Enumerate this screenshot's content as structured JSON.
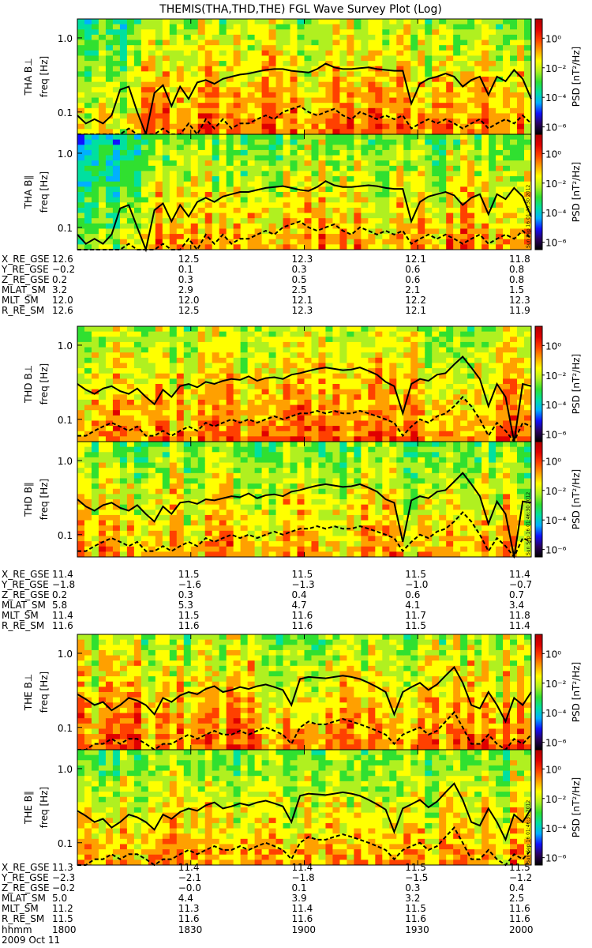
{
  "title": "THEMIS(THA,THD,THE) FGL Wave Survey Plot (Log)",
  "date_label": "2009 Oct 11",
  "stamp": "Sun Sep 16 01:46:30 2012",
  "colorbar": {
    "label": "PSD [nT²/Hz]",
    "ticks": [
      "10⁰",
      "10⁻²",
      "10⁻⁴",
      "10⁻⁶"
    ],
    "tick_values": [
      0,
      -2,
      -4,
      -6
    ],
    "range_log10": [
      -6.5,
      1.3
    ],
    "colors": [
      "#000000",
      "#2a0060",
      "#1010ff",
      "#00b0ff",
      "#00e0a0",
      "#30e030",
      "#b0f020",
      "#ffff00",
      "#ffa000",
      "#ff4000",
      "#e00000",
      "#b00000"
    ]
  },
  "yaxis": {
    "label": "freq [Hz]",
    "ticks": [
      "1.0",
      "0.1"
    ],
    "tick_values": [
      1.0,
      0.1
    ],
    "range_hz": [
      0.05,
      1.8
    ],
    "scale": "log"
  },
  "time_axis": {
    "ticks": [
      "1800",
      "1830",
      "1900",
      "1930",
      "2000"
    ],
    "tick_hours": [
      18.0,
      18.5,
      19.0,
      19.5,
      20.0
    ],
    "row_label": "hhmm"
  },
  "chart_data": {
    "type": "heatmap",
    "panels": [
      {
        "ylabel": "THA B⊥",
        "solid": [
          0.09,
          0.07,
          0.08,
          0.07,
          0.09,
          0.2,
          0.22,
          0.1,
          0.05,
          0.18,
          0.23,
          0.12,
          0.22,
          0.15,
          0.25,
          0.27,
          0.24,
          0.28,
          0.3,
          0.32,
          0.33,
          0.35,
          0.37,
          0.38,
          0.38,
          0.36,
          0.35,
          0.34,
          0.38,
          0.45,
          0.4,
          0.38,
          0.38,
          0.39,
          0.4,
          0.38,
          0.37,
          0.36,
          0.36,
          0.13,
          0.24,
          0.28,
          0.3,
          0.33,
          0.3,
          0.22,
          0.27,
          0.3,
          0.17,
          0.3,
          0.26,
          0.37,
          0.28,
          0.15
        ],
        "dashed": [
          0.05,
          0.05,
          0.05,
          0.05,
          0.05,
          0.05,
          0.06,
          0.05,
          0.05,
          0.05,
          0.06,
          0.05,
          0.05,
          0.07,
          0.05,
          0.08,
          0.06,
          0.08,
          0.06,
          0.07,
          0.07,
          0.08,
          0.09,
          0.08,
          0.1,
          0.11,
          0.12,
          0.1,
          0.09,
          0.1,
          0.11,
          0.09,
          0.08,
          0.1,
          0.09,
          0.08,
          0.09,
          0.08,
          0.09,
          0.06,
          0.07,
          0.08,
          0.07,
          0.08,
          0.07,
          0.06,
          0.07,
          0.08,
          0.06,
          0.07,
          0.08,
          0.07,
          0.09,
          0.07
        ]
      },
      {
        "ylabel": "THA B∥",
        "solid": [
          0.08,
          0.06,
          0.07,
          0.06,
          0.08,
          0.18,
          0.2,
          0.1,
          0.05,
          0.17,
          0.21,
          0.12,
          0.2,
          0.14,
          0.22,
          0.25,
          0.22,
          0.26,
          0.28,
          0.3,
          0.3,
          0.32,
          0.34,
          0.35,
          0.36,
          0.34,
          0.32,
          0.31,
          0.35,
          0.42,
          0.37,
          0.35,
          0.35,
          0.36,
          0.37,
          0.36,
          0.34,
          0.33,
          0.33,
          0.12,
          0.22,
          0.26,
          0.28,
          0.3,
          0.27,
          0.2,
          0.25,
          0.28,
          0.15,
          0.28,
          0.24,
          0.34,
          0.26,
          0.14
        ],
        "dashed": [
          0.05,
          0.05,
          0.05,
          0.05,
          0.05,
          0.05,
          0.06,
          0.05,
          0.05,
          0.05,
          0.06,
          0.05,
          0.05,
          0.07,
          0.05,
          0.08,
          0.06,
          0.08,
          0.06,
          0.07,
          0.07,
          0.08,
          0.09,
          0.08,
          0.1,
          0.11,
          0.12,
          0.1,
          0.09,
          0.1,
          0.11,
          0.09,
          0.08,
          0.1,
          0.09,
          0.08,
          0.09,
          0.08,
          0.09,
          0.06,
          0.07,
          0.08,
          0.07,
          0.08,
          0.07,
          0.06,
          0.07,
          0.08,
          0.06,
          0.07,
          0.08,
          0.07,
          0.09,
          0.07
        ]
      },
      {
        "ylabel": "THD B⊥",
        "solid": [
          0.3,
          0.25,
          0.22,
          0.26,
          0.28,
          0.24,
          0.22,
          0.26,
          0.2,
          0.16,
          0.25,
          0.2,
          0.28,
          0.3,
          0.27,
          0.32,
          0.3,
          0.33,
          0.35,
          0.34,
          0.38,
          0.33,
          0.36,
          0.37,
          0.35,
          0.4,
          0.42,
          0.45,
          0.48,
          0.5,
          0.48,
          0.46,
          0.47,
          0.5,
          0.45,
          0.4,
          0.32,
          0.28,
          0.12,
          0.3,
          0.35,
          0.33,
          0.4,
          0.42,
          0.55,
          0.7,
          0.5,
          0.35,
          0.15,
          0.3,
          0.2,
          0.05,
          0.3,
          0.28
        ],
        "dashed": [
          0.06,
          0.06,
          0.07,
          0.08,
          0.09,
          0.08,
          0.07,
          0.08,
          0.06,
          0.06,
          0.07,
          0.06,
          0.07,
          0.08,
          0.07,
          0.09,
          0.08,
          0.09,
          0.1,
          0.09,
          0.1,
          0.09,
          0.1,
          0.11,
          0.1,
          0.11,
          0.12,
          0.12,
          0.13,
          0.12,
          0.13,
          0.12,
          0.12,
          0.13,
          0.12,
          0.11,
          0.1,
          0.09,
          0.06,
          0.08,
          0.1,
          0.09,
          0.11,
          0.12,
          0.15,
          0.2,
          0.15,
          0.1,
          0.06,
          0.09,
          0.07,
          0.05,
          0.09,
          0.08
        ]
      },
      {
        "ylabel": "THD B∥",
        "solid": [
          0.3,
          0.24,
          0.21,
          0.25,
          0.27,
          0.23,
          0.21,
          0.25,
          0.19,
          0.15,
          0.24,
          0.19,
          0.27,
          0.28,
          0.26,
          0.3,
          0.29,
          0.31,
          0.33,
          0.32,
          0.36,
          0.31,
          0.34,
          0.35,
          0.33,
          0.38,
          0.4,
          0.43,
          0.46,
          0.48,
          0.46,
          0.44,
          0.45,
          0.48,
          0.43,
          0.38,
          0.3,
          0.27,
          0.08,
          0.29,
          0.33,
          0.31,
          0.38,
          0.4,
          0.52,
          0.68,
          0.48,
          0.33,
          0.14,
          0.28,
          0.19,
          0.05,
          0.28,
          0.27
        ],
        "dashed": [
          0.06,
          0.06,
          0.07,
          0.08,
          0.09,
          0.08,
          0.07,
          0.08,
          0.06,
          0.06,
          0.07,
          0.06,
          0.07,
          0.08,
          0.07,
          0.09,
          0.08,
          0.09,
          0.1,
          0.09,
          0.1,
          0.09,
          0.1,
          0.11,
          0.1,
          0.11,
          0.12,
          0.12,
          0.13,
          0.12,
          0.13,
          0.12,
          0.12,
          0.13,
          0.12,
          0.11,
          0.1,
          0.09,
          0.06,
          0.08,
          0.1,
          0.09,
          0.11,
          0.12,
          0.15,
          0.2,
          0.15,
          0.1,
          0.06,
          0.09,
          0.07,
          0.05,
          0.09,
          0.08
        ]
      },
      {
        "ylabel": "THE B⊥",
        "solid": [
          0.28,
          0.24,
          0.2,
          0.22,
          0.17,
          0.2,
          0.25,
          0.23,
          0.2,
          0.15,
          0.25,
          0.22,
          0.27,
          0.3,
          0.28,
          0.33,
          0.36,
          0.3,
          0.32,
          0.35,
          0.33,
          0.36,
          0.38,
          0.35,
          0.32,
          0.2,
          0.45,
          0.48,
          0.47,
          0.46,
          0.48,
          0.5,
          0.48,
          0.45,
          0.4,
          0.35,
          0.3,
          0.15,
          0.3,
          0.35,
          0.4,
          0.32,
          0.38,
          0.5,
          0.65,
          0.4,
          0.2,
          0.18,
          0.3,
          0.2,
          0.12,
          0.25,
          0.2,
          0.3
        ],
        "dashed": [
          0.05,
          0.05,
          0.06,
          0.06,
          0.07,
          0.06,
          0.07,
          0.07,
          0.06,
          0.05,
          0.06,
          0.06,
          0.07,
          0.08,
          0.07,
          0.08,
          0.09,
          0.08,
          0.08,
          0.09,
          0.08,
          0.09,
          0.1,
          0.09,
          0.08,
          0.06,
          0.1,
          0.12,
          0.11,
          0.11,
          0.12,
          0.13,
          0.12,
          0.11,
          0.1,
          0.09,
          0.08,
          0.06,
          0.08,
          0.09,
          0.1,
          0.08,
          0.09,
          0.12,
          0.16,
          0.1,
          0.06,
          0.06,
          0.08,
          0.06,
          0.05,
          0.07,
          0.06,
          0.08
        ]
      },
      {
        "ylabel": "THE B∥",
        "solid": [
          0.27,
          0.23,
          0.19,
          0.21,
          0.16,
          0.19,
          0.24,
          0.22,
          0.19,
          0.15,
          0.24,
          0.21,
          0.26,
          0.29,
          0.27,
          0.32,
          0.35,
          0.29,
          0.31,
          0.34,
          0.32,
          0.35,
          0.37,
          0.34,
          0.31,
          0.19,
          0.43,
          0.46,
          0.45,
          0.44,
          0.46,
          0.48,
          0.46,
          0.43,
          0.38,
          0.33,
          0.28,
          0.14,
          0.29,
          0.33,
          0.38,
          0.3,
          0.36,
          0.48,
          0.63,
          0.38,
          0.19,
          0.17,
          0.29,
          0.19,
          0.11,
          0.24,
          0.19,
          0.29
        ],
        "dashed": [
          0.05,
          0.05,
          0.06,
          0.06,
          0.07,
          0.06,
          0.07,
          0.07,
          0.06,
          0.05,
          0.06,
          0.06,
          0.07,
          0.08,
          0.07,
          0.08,
          0.09,
          0.08,
          0.08,
          0.09,
          0.08,
          0.09,
          0.1,
          0.09,
          0.08,
          0.06,
          0.1,
          0.12,
          0.11,
          0.11,
          0.12,
          0.13,
          0.12,
          0.11,
          0.1,
          0.09,
          0.08,
          0.06,
          0.08,
          0.09,
          0.1,
          0.08,
          0.09,
          0.12,
          0.16,
          0.1,
          0.06,
          0.06,
          0.08,
          0.06,
          0.05,
          0.07,
          0.06,
          0.08
        ]
      }
    ]
  },
  "orbit_tables": [
    {
      "rows": [
        {
          "label": "X_RE_GSE",
          "values": [
            "12.6",
            "12.5",
            "12.3",
            "12.1",
            "11.8"
          ]
        },
        {
          "label": "Y_RE_GSE",
          "values": [
            "−0.2",
            "0.1",
            "0.3",
            "0.6",
            "0.8"
          ]
        },
        {
          "label": "Z_RE_GSE",
          "values": [
            "0.2",
            "0.3",
            "0.5",
            "0.6",
            "0.8"
          ]
        },
        {
          "label": "MLAT_SM",
          "values": [
            "3.2",
            "2.9",
            "2.5",
            "2.1",
            "1.5"
          ]
        },
        {
          "label": "MLT_SM",
          "values": [
            "12.0",
            "12.0",
            "12.1",
            "12.2",
            "12.3"
          ]
        },
        {
          "label": "R_RE_SM",
          "values": [
            "12.6",
            "12.5",
            "12.3",
            "12.1",
            "11.9"
          ]
        }
      ]
    },
    {
      "rows": [
        {
          "label": "X_RE_GSE",
          "values": [
            "11.4",
            "11.5",
            "11.5",
            "11.5",
            "11.4"
          ]
        },
        {
          "label": "Y_RE_GSE",
          "values": [
            "−1.8",
            "−1.6",
            "−1.3",
            "−1.0",
            "−0.7"
          ]
        },
        {
          "label": "Z_RE_GSE",
          "values": [
            "0.2",
            "0.3",
            "0.4",
            "0.6",
            "0.7"
          ]
        },
        {
          "label": "MLAT_SM",
          "values": [
            "5.8",
            "5.3",
            "4.7",
            "4.1",
            "3.4"
          ]
        },
        {
          "label": "MLT_SM",
          "values": [
            "11.4",
            "11.5",
            "11.6",
            "11.7",
            "11.8"
          ]
        },
        {
          "label": "R_RE_SM",
          "values": [
            "11.6",
            "11.6",
            "11.6",
            "11.5",
            "11.4"
          ]
        }
      ]
    },
    {
      "rows": [
        {
          "label": "X_RE_GSE",
          "values": [
            "11.3",
            "11.4",
            "11.4",
            "11.5",
            "11.5"
          ]
        },
        {
          "label": "Y_RE_GSE",
          "values": [
            "−2.3",
            "−2.1",
            "−1.8",
            "−1.5",
            "−1.2"
          ]
        },
        {
          "label": "Z_RE_GSE",
          "values": [
            "−0.2",
            "−0.0",
            "0.1",
            "0.3",
            "0.4"
          ]
        },
        {
          "label": "MLAT_SM",
          "values": [
            "5.0",
            "4.4",
            "3.9",
            "3.2",
            "2.5"
          ]
        },
        {
          "label": "MLT_SM",
          "values": [
            "11.2",
            "11.3",
            "11.4",
            "11.5",
            "11.6"
          ]
        },
        {
          "label": "R_RE_SM",
          "values": [
            "11.5",
            "11.6",
            "11.6",
            "11.6",
            "11.6"
          ]
        }
      ]
    }
  ]
}
